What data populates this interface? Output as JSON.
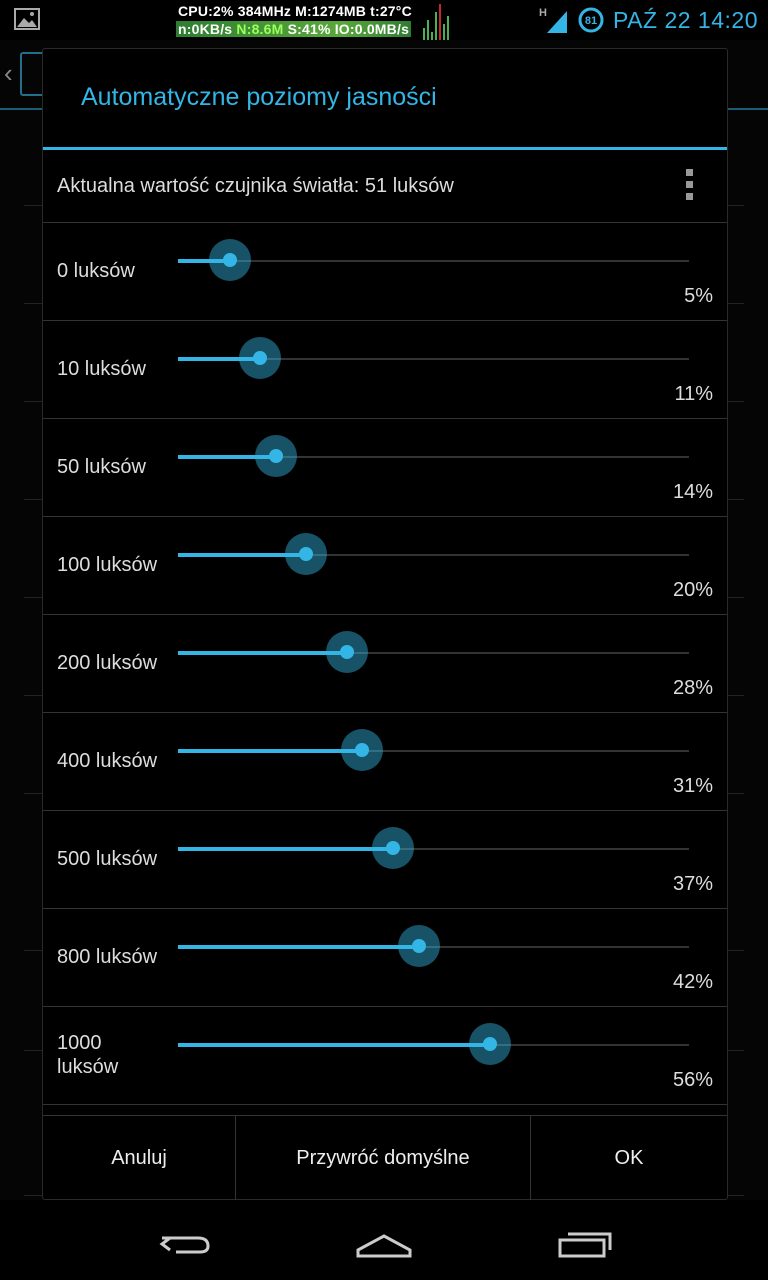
{
  "status_bar": {
    "monitor_line1": "CPU:2% 384MHz M:1274MB t:27°C",
    "monitor_line2_a": "n:0KB/s ",
    "monitor_line2_net": "N:8.6M",
    "monitor_line2_b": " S:41% IO:0.0MB/s",
    "network_type": "H",
    "battery_level": "81",
    "clock": "PAŹ 22 14:20",
    "icons": [
      "gallery-notification-icon",
      "signal-icon",
      "battery-icon"
    ]
  },
  "dialog": {
    "title": "Automatyczne poziomy jasności",
    "sensor_text": "Aktualna wartość czujnika światła: 51 luksów",
    "levels": [
      {
        "label": "0 luksów",
        "percent_label": "5%",
        "value": 5
      },
      {
        "label": "10 luksów",
        "percent_label": "11%",
        "value": 11
      },
      {
        "label": "50 luksów",
        "percent_label": "14%",
        "value": 14
      },
      {
        "label": "100 luksów",
        "percent_label": "20%",
        "value": 20
      },
      {
        "label": "200 luksów",
        "percent_label": "28%",
        "value": 28
      },
      {
        "label": "400 luksów",
        "percent_label": "31%",
        "value": 31
      },
      {
        "label": "500 luksów",
        "percent_label": "37%",
        "value": 37
      },
      {
        "label": "800 luksów",
        "percent_label": "42%",
        "value": 42
      },
      {
        "label": "1000 luksów",
        "percent_label": "56%",
        "value": 56
      }
    ],
    "buttons": {
      "cancel": "Anuluj",
      "restore": "Przywróć domyślne",
      "ok": "OK"
    }
  },
  "navigation": {
    "icons": [
      "back-icon",
      "home-icon",
      "recent-apps-icon"
    ]
  },
  "colors": {
    "accent": "#33b5e5",
    "background": "#000000",
    "divider": "#333333"
  }
}
